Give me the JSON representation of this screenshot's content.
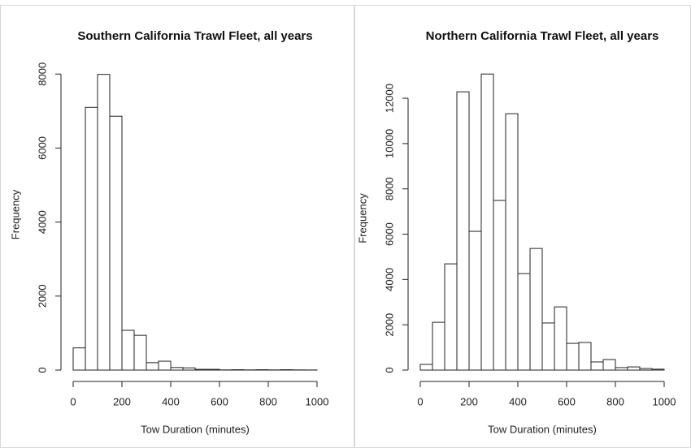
{
  "chart_data": [
    {
      "type": "histogram",
      "title": "Southern California Trawl Fleet, all years",
      "xlabel": "Tow Duration (minutes)",
      "ylabel": "Frequency",
      "bins": [
        0,
        50,
        100,
        150,
        200,
        250,
        300,
        350,
        400,
        450,
        500,
        550,
        600,
        650,
        700,
        750,
        800,
        850,
        900,
        950,
        1000
      ],
      "values": [
        600,
        7100,
        7990,
        6860,
        1075,
        940,
        200,
        240,
        70,
        60,
        20,
        20,
        5,
        10,
        5,
        10,
        5,
        10,
        5,
        3
      ],
      "xlim": [
        0,
        1000
      ],
      "xticks": [
        0,
        200,
        400,
        600,
        800,
        1000
      ],
      "ylim": [
        0,
        8400
      ],
      "yticks": [
        0,
        2000,
        4000,
        6000,
        8000
      ],
      "color": "#ffffff"
    },
    {
      "type": "histogram",
      "title": "Northern California Trawl Fleet, all years",
      "xlabel": "Tow Duration (minutes)",
      "ylabel": "Frequency",
      "bins": [
        0,
        50,
        100,
        150,
        200,
        250,
        300,
        350,
        400,
        450,
        500,
        550,
        600,
        650,
        700,
        750,
        800,
        850,
        900,
        950,
        1000
      ],
      "values": [
        250,
        2110,
        4690,
        12285,
        6125,
        13070,
        7490,
        11320,
        4260,
        5370,
        2080,
        2790,
        1180,
        1220,
        360,
        465,
        110,
        140,
        70,
        40
      ],
      "xlim": [
        0,
        1000
      ],
      "xticks": [
        0,
        200,
        400,
        600,
        800,
        1000
      ],
      "ylim": [
        0,
        13400
      ],
      "yticks": [
        0,
        2000,
        4000,
        6000,
        8000,
        10000,
        12000
      ],
      "color": "#ffffff"
    }
  ]
}
